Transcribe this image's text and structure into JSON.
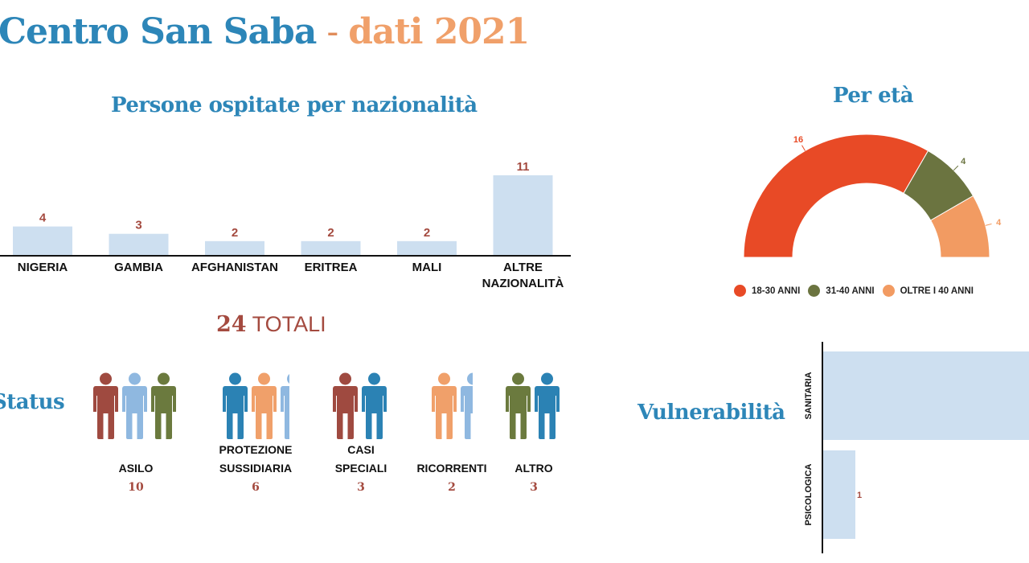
{
  "header": {
    "title_main": "Centro San Saba",
    "title_sep": " - ",
    "title_accent": "dati 2021"
  },
  "nationality": {
    "title": "Persone ospitate per nazionalità",
    "total_number": "24",
    "total_label": " TOTALI"
  },
  "age": {
    "title": "Per età"
  },
  "status": {
    "title": "Status",
    "groups": [
      {
        "label": "ASILO",
        "value": "10",
        "icons": [
          "person-icon-red",
          "person-icon-lightblue",
          "person-icon-green"
        ]
      },
      {
        "label": "PROTEZIONE\nSUSSIDIARIA",
        "value": "6",
        "icons": [
          "person-icon-blue",
          "person-icon-orange",
          "person-icon-lightblue"
        ]
      },
      {
        "label": "CASI\nSPECIALI",
        "value": "3",
        "icons": [
          "person-icon-red",
          "person-icon-blue"
        ]
      },
      {
        "label": "RICORRENTI",
        "value": "2",
        "icons": [
          "person-icon-orange",
          "person-icon-lightblue"
        ]
      },
      {
        "label": "ALTRO",
        "value": "3",
        "icons": [
          "person-icon-green",
          "person-icon-blue"
        ]
      }
    ]
  },
  "vulnerability": {
    "title": "Vulnerabilità"
  },
  "colors": {
    "title_blue": "#2d86b8",
    "accent_orange": "#f0a06a",
    "bar_fill": "#cddff0",
    "value_red": "#a44a3f",
    "age_18_30": "#e84a26",
    "age_31_40": "#6b7440",
    "age_40_plus": "#f29b62",
    "person_red": "#9f4a40",
    "person_lightblue": "#8fb8e0",
    "person_green": "#6b7a3e",
    "person_blue": "#2b82b4",
    "person_orange": "#f0a06a"
  },
  "chart_data": [
    {
      "type": "bar",
      "title": "Persone ospitate per nazionalità",
      "categories": [
        "NIGERIA",
        "GAMBIA",
        "AFGHANISTAN",
        "ERITREA",
        "MALI",
        "ALTRE NAZIONALITÀ"
      ],
      "values": [
        4,
        3,
        2,
        2,
        2,
        11
      ]
    },
    {
      "type": "pie",
      "title": "Per età",
      "categories": [
        "18-30 ANNI",
        "31-40 ANNI",
        "OLTRE I 40 ANNI"
      ],
      "values": [
        16,
        4,
        4
      ],
      "legend": "bottom"
    },
    {
      "type": "bar",
      "title": "Vulnerabilità",
      "orientation": "horizontal",
      "categories": [
        "SANITARIA",
        "PSICOLOGICA"
      ],
      "values": [
        null,
        1
      ]
    }
  ]
}
